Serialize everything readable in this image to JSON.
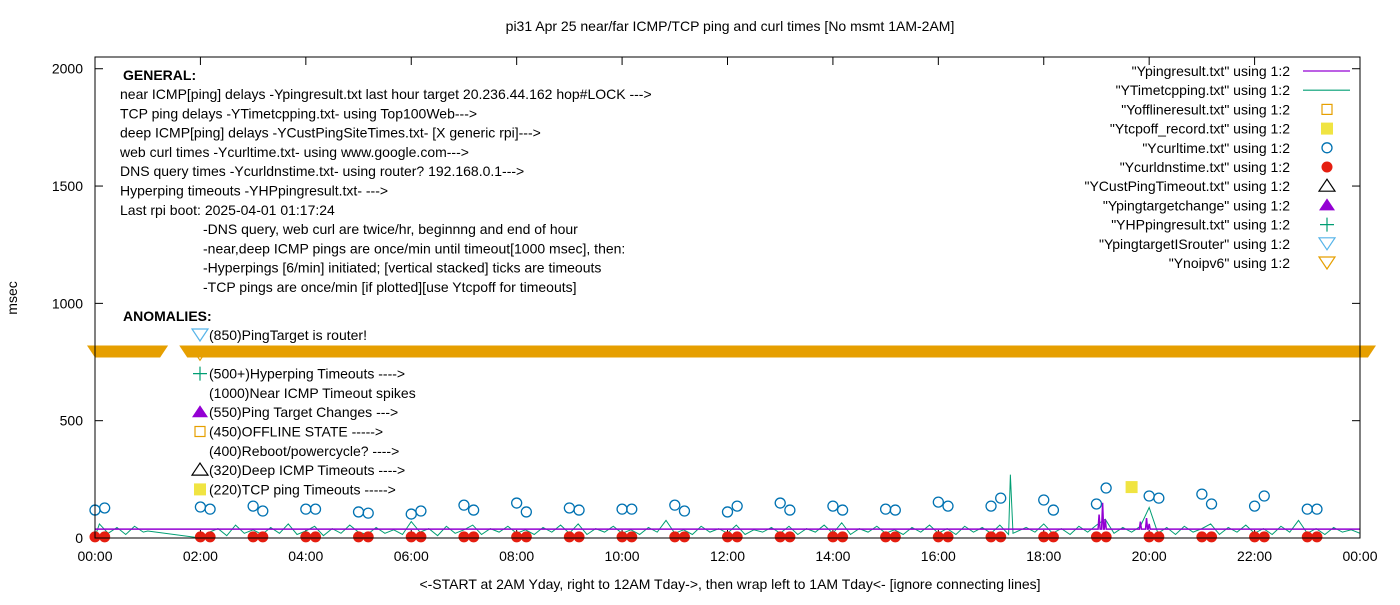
{
  "chart_data": {
    "type": "line",
    "title": "pi31 Apr 25  near/far ICMP/TCP ping and curl times [No msmt 1AM-2AM]",
    "xlabel": "<-START at 2AM Yday, right to 12AM Tday->, then wrap left to 1AM Tday<- [ignore connecting lines]",
    "ylabel": "msec",
    "xlim": [
      "00:00",
      "24:00"
    ],
    "ylim": [
      0,
      2050
    ],
    "x_ticks": [
      "00:00",
      "02:00",
      "04:00",
      "06:00",
      "08:00",
      "10:00",
      "12:00",
      "14:00",
      "16:00",
      "18:00",
      "20:00",
      "22:00",
      "00:00"
    ],
    "y_ticks": [
      0,
      500,
      1000,
      1500,
      2000
    ],
    "grid": false,
    "legend_placement": "top-right",
    "legend": [
      {
        "label": "\"Ypingresult.txt\" using 1:2",
        "symbol": "line",
        "color": "#9400d3"
      },
      {
        "label": "\"YTimetcpping.txt\" using 1:2",
        "symbol": "line",
        "color": "#009e73"
      },
      {
        "label": "\"Yofflineresult.txt\" using 1:2",
        "symbol": "open-square",
        "color": "#e69f00"
      },
      {
        "label": "\"Ytcpoff_record.txt\" using 1:2",
        "symbol": "filled-square",
        "color": "#f0e442"
      },
      {
        "label": "\"Ycurltime.txt\" using 1:2",
        "symbol": "open-circle",
        "color": "#0072b2"
      },
      {
        "label": "\"Ycurldnstime.txt\" using 1:2",
        "symbol": "filled-circle",
        "color": "#e51e10"
      },
      {
        "label": "\"YCustPingTimeout.txt\" using 1:2",
        "symbol": "open-triangle",
        "color": "#000000"
      },
      {
        "label": "\"Ypingtargetchange\" using 1:2",
        "symbol": "filled-triangle",
        "color": "#9400d3"
      },
      {
        "label": "\"YHPpingresult.txt\" using 1:2",
        "symbol": "plus",
        "color": "#009e73"
      },
      {
        "label": "\"YpingtargetISrouter\" using 1:2",
        "symbol": "open-inverted-triangle",
        "color": "#56b4e9"
      },
      {
        "label": "\"Ynoipv6\" using 1:2",
        "symbol": "open-inverted-triangle",
        "color": "#e69f00"
      }
    ],
    "series": {
      "ypingresult": {
        "baseline": 38,
        "spikes": [
          [
            "19:03",
            100
          ],
          [
            "19:07",
            150
          ],
          [
            "19:10",
            80
          ],
          [
            "19:50",
            70
          ],
          [
            "19:57",
            85
          ],
          [
            "20:00",
            60
          ]
        ]
      },
      "ytimetcpping": [
        [
          "00:00",
          5
        ],
        [
          "00:05",
          60
        ],
        [
          "00:15",
          20
        ],
        [
          "00:25",
          45
        ],
        [
          "00:35",
          15
        ],
        [
          "00:45",
          50
        ],
        [
          "00:55",
          25
        ],
        [
          "01:00",
          30
        ],
        [
          "02:00",
          0
        ],
        [
          "02:10",
          25
        ],
        [
          "02:20",
          40
        ],
        [
          "02:30",
          10
        ],
        [
          "02:40",
          55
        ],
        [
          "02:50",
          20
        ],
        [
          "03:00",
          35
        ],
        [
          "03:10",
          15
        ],
        [
          "03:20",
          45
        ],
        [
          "03:30",
          20
        ],
        [
          "03:40",
          60
        ],
        [
          "03:50",
          15
        ],
        [
          "04:00",
          30
        ],
        [
          "04:10",
          50
        ],
        [
          "04:20",
          10
        ],
        [
          "04:30",
          40
        ],
        [
          "04:40",
          20
        ],
        [
          "04:50",
          55
        ],
        [
          "05:00",
          25
        ],
        [
          "05:10",
          15
        ],
        [
          "05:20",
          45
        ],
        [
          "05:30",
          20
        ],
        [
          "05:40",
          35
        ],
        [
          "05:50",
          15
        ],
        [
          "06:00",
          70
        ],
        [
          "06:10",
          25
        ],
        [
          "06:20",
          40
        ],
        [
          "06:30",
          10
        ],
        [
          "06:40",
          50
        ],
        [
          "06:50",
          20
        ],
        [
          "07:00",
          35
        ],
        [
          "07:10",
          55
        ],
        [
          "07:20",
          15
        ],
        [
          "07:30",
          40
        ],
        [
          "07:40",
          25
        ],
        [
          "07:50",
          50
        ],
        [
          "08:00",
          20
        ],
        [
          "08:10",
          35
        ],
        [
          "08:20",
          15
        ],
        [
          "08:30",
          45
        ],
        [
          "08:40",
          25
        ],
        [
          "08:50",
          55
        ],
        [
          "09:00",
          20
        ],
        [
          "09:10",
          60
        ],
        [
          "09:20",
          15
        ],
        [
          "09:30",
          40
        ],
        [
          "09:40",
          25
        ],
        [
          "09:50",
          50
        ],
        [
          "10:00",
          20
        ],
        [
          "10:10",
          35
        ],
        [
          "10:20",
          15
        ],
        [
          "10:30",
          45
        ],
        [
          "10:40",
          25
        ],
        [
          "10:50",
          75
        ],
        [
          "11:00",
          20
        ],
        [
          "11:10",
          35
        ],
        [
          "11:20",
          15
        ],
        [
          "11:30",
          50
        ],
        [
          "11:40",
          25
        ],
        [
          "11:50",
          40
        ],
        [
          "12:00",
          20
        ],
        [
          "12:10",
          55
        ],
        [
          "12:20",
          15
        ],
        [
          "12:30",
          35
        ],
        [
          "12:40",
          25
        ],
        [
          "12:50",
          45
        ],
        [
          "13:00",
          20
        ],
        [
          "13:10",
          50
        ],
        [
          "13:20",
          15
        ],
        [
          "13:30",
          40
        ],
        [
          "13:40",
          25
        ],
        [
          "13:50",
          55
        ],
        [
          "14:00",
          20
        ],
        [
          "14:10",
          65
        ],
        [
          "14:20",
          15
        ],
        [
          "14:30",
          40
        ],
        [
          "14:40",
          25
        ],
        [
          "14:50",
          50
        ],
        [
          "15:00",
          20
        ],
        [
          "15:10",
          35
        ],
        [
          "15:20",
          15
        ],
        [
          "15:30",
          45
        ],
        [
          "15:40",
          25
        ],
        [
          "15:50",
          55
        ],
        [
          "16:00",
          20
        ],
        [
          "16:10",
          40
        ],
        [
          "16:20",
          15
        ],
        [
          "16:30",
          50
        ],
        [
          "16:40",
          25
        ],
        [
          "16:50",
          45
        ],
        [
          "17:00",
          20
        ],
        [
          "17:10",
          55
        ],
        [
          "17:20",
          15
        ],
        [
          "17:22",
          270
        ],
        [
          "17:25",
          20
        ],
        [
          "17:40",
          45
        ],
        [
          "17:50",
          25
        ],
        [
          "18:00",
          60
        ],
        [
          "18:10",
          20
        ],
        [
          "18:20",
          40
        ],
        [
          "18:30",
          15
        ],
        [
          "18:40",
          50
        ],
        [
          "18:50",
          25
        ],
        [
          "19:00",
          55
        ],
        [
          "19:10",
          80
        ],
        [
          "19:20",
          20
        ],
        [
          "19:30",
          45
        ],
        [
          "19:40",
          25
        ],
        [
          "19:50",
          50
        ],
        [
          "20:00",
          130
        ],
        [
          "20:10",
          20
        ],
        [
          "20:20",
          45
        ],
        [
          "20:30",
          15
        ],
        [
          "20:40",
          50
        ],
        [
          "20:50",
          25
        ],
        [
          "21:00",
          40
        ],
        [
          "21:10",
          60
        ],
        [
          "21:20",
          15
        ],
        [
          "21:30",
          45
        ],
        [
          "21:40",
          25
        ],
        [
          "21:50",
          55
        ],
        [
          "22:00",
          20
        ],
        [
          "22:10",
          40
        ],
        [
          "22:20",
          15
        ],
        [
          "22:30",
          50
        ],
        [
          "22:40",
          25
        ],
        [
          "22:50",
          75
        ],
        [
          "23:00",
          20
        ],
        [
          "23:10",
          40
        ],
        [
          "23:20",
          15
        ],
        [
          "23:30",
          45
        ],
        [
          "23:40",
          25
        ],
        [
          "23:50",
          35
        ],
        [
          "24:00",
          20
        ]
      ],
      "ycurltime": [
        [
          "00:00",
          119
        ],
        [
          "00:11",
          128
        ],
        [
          "02:00",
          132
        ],
        [
          "02:11",
          123
        ],
        [
          "03:00",
          136
        ],
        [
          "03:11",
          115
        ],
        [
          "04:00",
          123
        ],
        [
          "04:11",
          123
        ],
        [
          "05:00",
          111
        ],
        [
          "05:11",
          106
        ],
        [
          "06:00",
          102
        ],
        [
          "06:11",
          115
        ],
        [
          "07:00",
          140
        ],
        [
          "07:11",
          119
        ],
        [
          "08:00",
          149
        ],
        [
          "08:11",
          111
        ],
        [
          "09:00",
          128
        ],
        [
          "09:11",
          119
        ],
        [
          "10:00",
          123
        ],
        [
          "10:11",
          123
        ],
        [
          "11:00",
          140
        ],
        [
          "11:11",
          115
        ],
        [
          "12:00",
          111
        ],
        [
          "12:11",
          136
        ],
        [
          "13:00",
          149
        ],
        [
          "13:11",
          119
        ],
        [
          "14:00",
          136
        ],
        [
          "14:11",
          119
        ],
        [
          "15:00",
          123
        ],
        [
          "15:11",
          119
        ],
        [
          "16:00",
          153
        ],
        [
          "16:11",
          136
        ],
        [
          "17:00",
          136
        ],
        [
          "17:11",
          170
        ],
        [
          "18:00",
          162
        ],
        [
          "18:11",
          119
        ],
        [
          "19:00",
          145
        ],
        [
          "19:11",
          213
        ],
        [
          "20:00",
          179
        ],
        [
          "20:11",
          170
        ],
        [
          "21:00",
          187
        ],
        [
          "21:11",
          145
        ],
        [
          "22:00",
          136
        ],
        [
          "22:11",
          179
        ],
        [
          "23:00",
          123
        ],
        [
          "23:11",
          123
        ]
      ],
      "ycurldnstime": [
        [
          "00:00",
          5
        ],
        [
          "00:11",
          5
        ],
        [
          "02:00",
          5
        ],
        [
          "02:11",
          5
        ],
        [
          "03:00",
          5
        ],
        [
          "03:11",
          5
        ],
        [
          "04:00",
          5
        ],
        [
          "04:11",
          5
        ],
        [
          "05:00",
          5
        ],
        [
          "05:11",
          5
        ],
        [
          "06:00",
          5
        ],
        [
          "06:11",
          5
        ],
        [
          "07:00",
          5
        ],
        [
          "07:11",
          5
        ],
        [
          "08:00",
          5
        ],
        [
          "08:11",
          5
        ],
        [
          "09:00",
          5
        ],
        [
          "09:11",
          5
        ],
        [
          "10:00",
          5
        ],
        [
          "10:11",
          5
        ],
        [
          "11:00",
          5
        ],
        [
          "11:11",
          5
        ],
        [
          "12:00",
          5
        ],
        [
          "12:11",
          5
        ],
        [
          "13:00",
          5
        ],
        [
          "13:11",
          5
        ],
        [
          "14:00",
          5
        ],
        [
          "14:11",
          5
        ],
        [
          "15:00",
          5
        ],
        [
          "15:11",
          5
        ],
        [
          "16:00",
          5
        ],
        [
          "16:11",
          5
        ],
        [
          "17:00",
          5
        ],
        [
          "17:11",
          5
        ],
        [
          "18:00",
          5
        ],
        [
          "18:11",
          5
        ],
        [
          "19:00",
          5
        ],
        [
          "19:11",
          5
        ],
        [
          "20:00",
          5
        ],
        [
          "20:11",
          5
        ],
        [
          "21:00",
          5
        ],
        [
          "21:11",
          5
        ],
        [
          "22:00",
          5
        ],
        [
          "22:11",
          5
        ],
        [
          "23:00",
          5
        ],
        [
          "23:11",
          5
        ]
      ],
      "ytcpoff_record": [
        [
          "19:40",
          217
        ]
      ],
      "ynoipv6": {
        "value": 795,
        "ranges": [
          [
            "00:00",
            "01:05"
          ],
          [
            "01:45",
            "24:00"
          ]
        ]
      }
    }
  },
  "notes": {
    "general_heading": "GENERAL:",
    "general_lines": [
      "near ICMP[ping] delays -Ypingresult.txt last hour target 20.236.44.162 hop#LOCK --->",
      "TCP ping delays -YTimetcpping.txt- using Top100Web--->",
      "deep ICMP[ping] delays -YCustPingSiteTimes.txt- [X generic rpi]--->",
      "web curl times -Ycurltime.txt- using www.google.com--->",
      "DNS query times -Ycurldnstime.txt- using router? 192.168.0.1--->",
      "Hyperping timeouts -YHPpingresult.txt- --->",
      "Last rpi boot: 2025-04-01 01:17:24"
    ],
    "sub_lines": [
      "-DNS query, web curl are twice/hr, beginnng and end of hour",
      "-near,deep ICMP pings are once/min until timeout[1000 msec], then:",
      "  -Hyperpings [6/min] initiated; [vertical stacked] ticks are timeouts",
      "-TCP pings are once/min [if plotted][use Ytcpoff for timeouts]"
    ],
    "anomalies_heading": "ANOMALIES:",
    "anomalies": [
      {
        "text": "(850)PingTarget is router!",
        "symbol": "open-inverted-triangle",
        "color": "#56b4e9"
      },
      {
        "text": "",
        "symbol": "open-inverted-triangle",
        "color": "#e69f00"
      },
      {
        "text": "(500+)Hyperping Timeouts ---->",
        "symbol": "plus",
        "color": "#009e73"
      },
      {
        "text": "(1000)Near ICMP Timeout spikes",
        "symbol": "none",
        "color": ""
      },
      {
        "text": "(550)Ping Target Changes --->",
        "symbol": "filled-triangle",
        "color": "#9400d3"
      },
      {
        "text": "(450)OFFLINE STATE ----->",
        "symbol": "open-square",
        "color": "#e69f00"
      },
      {
        "text": "(400)Reboot/powercycle? ---->",
        "symbol": "none",
        "color": ""
      },
      {
        "text": "(320)Deep ICMP Timeouts ---->",
        "symbol": "open-triangle",
        "color": "#000000"
      },
      {
        "text": "(220)TCP ping Timeouts ----->",
        "symbol": "filled-square",
        "color": "#f0e442"
      }
    ]
  }
}
